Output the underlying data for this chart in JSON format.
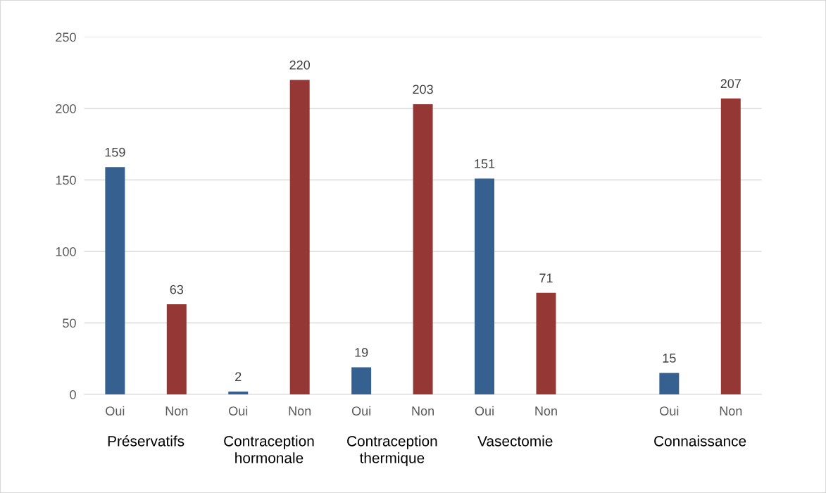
{
  "chart_data": {
    "type": "bar",
    "categories": [
      "Oui",
      "Non",
      "Oui",
      "Non",
      "Oui",
      "Non",
      "Oui",
      "Non",
      null,
      "Oui",
      "Non"
    ],
    "values": [
      159,
      63,
      2,
      220,
      19,
      203,
      151,
      71,
      null,
      15,
      207
    ],
    "colors": [
      "#36608f",
      "#943735",
      "#36608f",
      "#943735",
      "#36608f",
      "#943735",
      "#36608f",
      "#943735",
      "#36608f",
      "#36608f",
      "#943735"
    ],
    "annotations": [
      "Préservatifs",
      "Contraception\nhormonale",
      "Contraception\nthermique",
      "Vasectomie",
      "Connaissance"
    ],
    "ylim": [
      0,
      250
    ],
    "yticks": [
      0,
      50,
      100,
      150,
      200,
      250
    ],
    "grid": "y",
    "data_labels": true,
    "legend": false
  }
}
